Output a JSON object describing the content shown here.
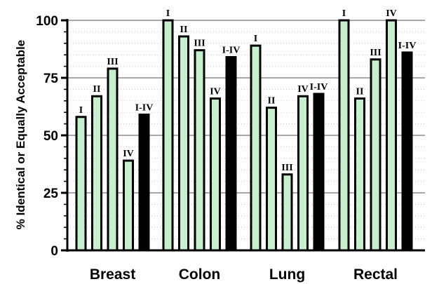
{
  "chart_data": {
    "type": "bar",
    "title": "",
    "xlabel": "",
    "ylabel": "% Identical or Equally Acceptable",
    "ylim": [
      0,
      100
    ],
    "yticks": [
      0,
      25,
      50,
      75,
      100
    ],
    "grid": "horizontal",
    "categories": [
      "Breast",
      "Colon",
      "Lung",
      "Rectal"
    ],
    "series": [
      {
        "name": "I",
        "values": [
          58,
          100,
          89,
          100
        ]
      },
      {
        "name": "II",
        "values": [
          67,
          93,
          62,
          66
        ]
      },
      {
        "name": "III",
        "values": [
          79,
          87,
          33,
          83
        ]
      },
      {
        "name": "IV",
        "values": [
          39,
          66,
          67,
          100
        ]
      },
      {
        "name": "I-IV",
        "values": [
          59,
          84,
          68,
          86
        ]
      }
    ],
    "bar_labels": [
      "I",
      "II",
      "III",
      "IV",
      "I-IV"
    ],
    "colors": {
      "stage_fill": "#c6f0cd",
      "combined_fill": "#000000",
      "bar_stroke": "#000000",
      "major_grid": "#a8a8a8",
      "minor_grid": "#c8c8c8"
    }
  }
}
